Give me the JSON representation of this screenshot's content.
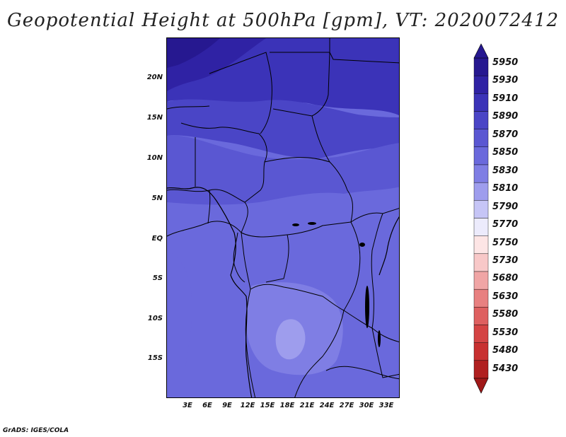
{
  "title": "Geopotential Height at 500hPa [gpm], VT: 2020072412",
  "credit": "GrADS: IGES/COLA",
  "axes": {
    "y_ticks": [
      "20N",
      "15N",
      "10N",
      "5N",
      "EQ",
      "5S",
      "10S",
      "15S"
    ],
    "x_ticks": [
      "3E",
      "6E",
      "9E",
      "12E",
      "15E",
      "18E",
      "21E",
      "24E",
      "27E",
      "30E",
      "33E"
    ]
  },
  "legend": {
    "levels": [
      {
        "label": "5950",
        "color": "#261890"
      },
      {
        "label": "5930",
        "color": "#2f22a4"
      },
      {
        "label": "5910",
        "color": "#3b33b8"
      },
      {
        "label": "5890",
        "color": "#4a45c6"
      },
      {
        "label": "5870",
        "color": "#5a57d2"
      },
      {
        "label": "5850",
        "color": "#6a69dc"
      },
      {
        "label": "5830",
        "color": "#7f7ee4"
      },
      {
        "label": "5810",
        "color": "#9e9ded"
      },
      {
        "label": "5790",
        "color": "#c6c5f6"
      },
      {
        "label": "5770",
        "color": "#ecebfc"
      },
      {
        "label": "5750",
        "color": "#fde5e5"
      },
      {
        "label": "5730",
        "color": "#f8c8c8"
      },
      {
        "label": "5680",
        "color": "#f0a5a5"
      },
      {
        "label": "5630",
        "color": "#e88080"
      },
      {
        "label": "5580",
        "color": "#de6060"
      },
      {
        "label": "5530",
        "color": "#d44444"
      },
      {
        "label": "5480",
        "color": "#c83030"
      },
      {
        "label": "5430",
        "color": "#b02020"
      }
    ],
    "top_arrow_color": "#261890",
    "bottom_arrow_color": "#a01818"
  }
}
